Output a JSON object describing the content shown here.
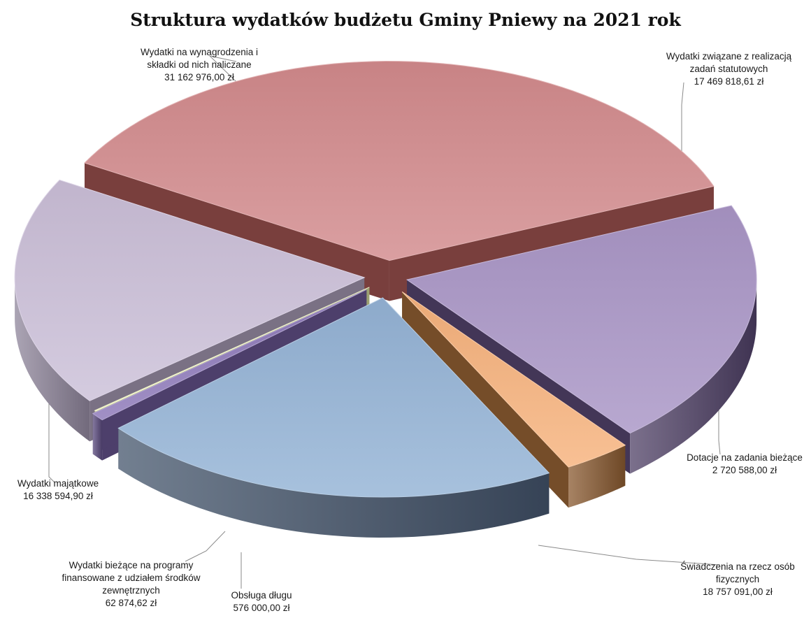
{
  "chart_data": {
    "type": "pie",
    "style": "3d-exploded",
    "title": "Struktura wydatków budżetu Gminy Pniewy na 2021 rok",
    "slices": [
      {
        "label": [
          "Wydatki na wynagrodzenia i",
          "składki od nich naliczane"
        ],
        "value": 31162976.0,
        "value_text": "31 162 976,00 zł",
        "color": "#d28a8c",
        "side": "#8e4a48"
      },
      {
        "label": [
          "Wydatki związane z realizacją",
          "zadań statutowych"
        ],
        "value": 17469818.61,
        "value_text": "17 469 818,61 zł",
        "color": "#a995c6",
        "side": "#4f4066"
      },
      {
        "label": [
          "Dotacje na zadania bieżące"
        ],
        "value": 2720588.0,
        "value_text": "2 720 588,00 zł",
        "color": "#f6b27c",
        "side": "#8a5a30"
      },
      {
        "label": [
          "Świadczenia na rzecz osób",
          "fizycznych"
        ],
        "value": 18757091.0,
        "value_text": "18 757 091,00 zł",
        "color": "#94b3d6",
        "side": "#43546b"
      },
      {
        "label": [
          "Obsługa długu"
        ],
        "value": 576000.0,
        "value_text": "576 000,00 zł",
        "color": "#8c78b8",
        "side": "#5a4a7e"
      },
      {
        "label": [
          "Wydatki bieżące na programy",
          "finansowane z udziałem środków",
          "zewnętrznych"
        ],
        "value": 62874.62,
        "value_text": "62 874,62 zł",
        "color": "#e8edb2",
        "side": "#b8bd86"
      },
      {
        "label": [
          "Wydatki majątkowe"
        ],
        "value": 16338594.9,
        "value_text": "16 338 594,90 zł",
        "color": "#cbbfd8",
        "side": "#8f859b"
      }
    ]
  }
}
